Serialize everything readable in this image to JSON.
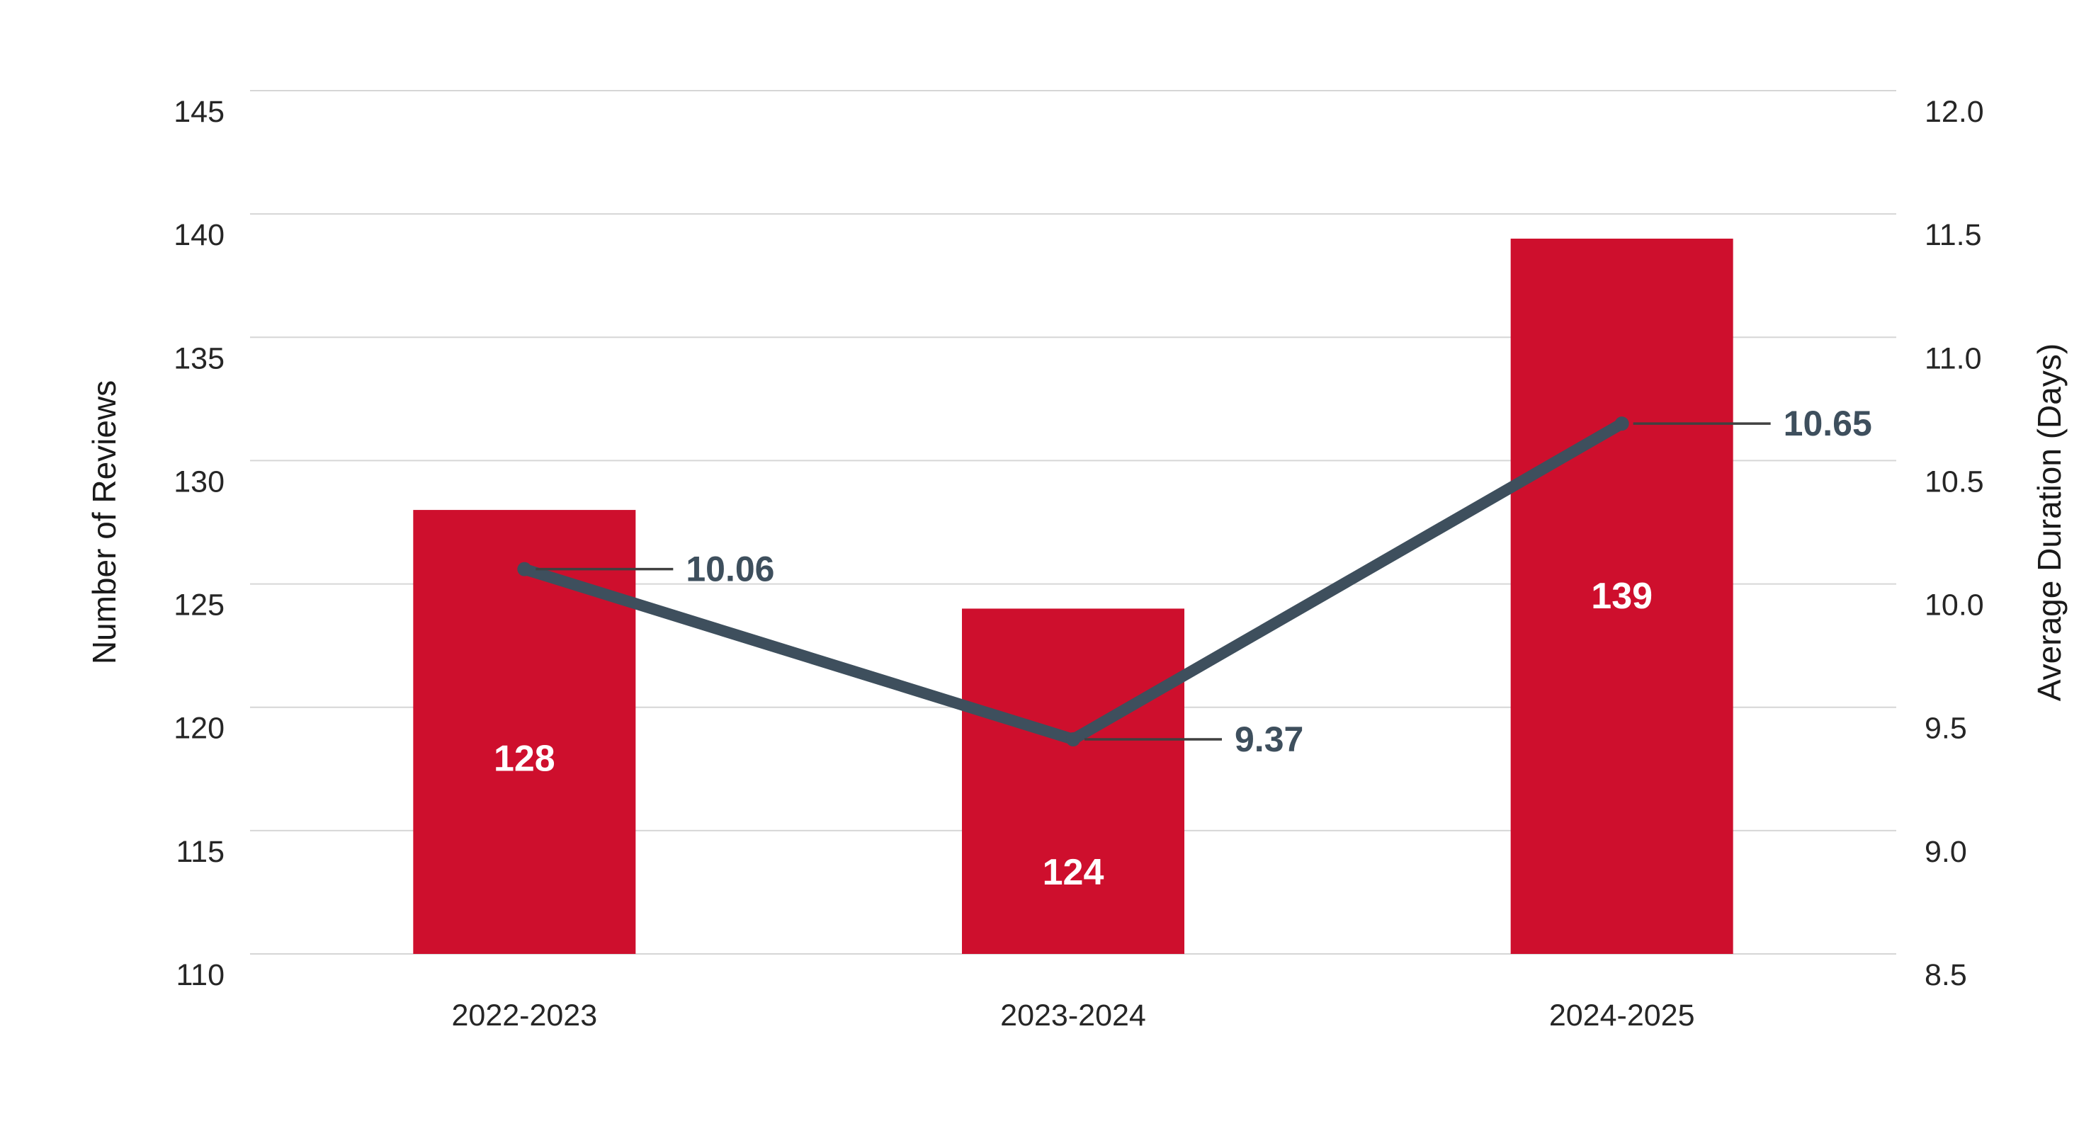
{
  "chart_data": {
    "type": "combo",
    "categories": [
      "2022-2023",
      "2023-2024",
      "2024-2025"
    ],
    "series": [
      {
        "name": "Number of Reviews",
        "type": "bar",
        "axis": "left",
        "values": [
          128,
          124,
          139
        ],
        "labels": [
          "128",
          "124",
          "139"
        ],
        "color": "#ce0f2d",
        "label_color": "#ffffff"
      },
      {
        "name": "Average Duration (Days)",
        "type": "line",
        "axis": "right",
        "values": [
          10.06,
          9.37,
          10.65
        ],
        "labels": [
          "10.06",
          "9.37",
          "10.65"
        ],
        "color": "#3e4f5d",
        "label_color": "#3e4f5d"
      }
    ],
    "left_axis": {
      "title": "Number of Reviews",
      "min": 110,
      "max": 145,
      "step": 5,
      "ticks": [
        "145",
        "140",
        "135",
        "130",
        "125",
        "120",
        "115",
        "110"
      ]
    },
    "right_axis": {
      "title": "Average Duration (Days)",
      "min": 8.5,
      "max": 12.0,
      "step": 0.5,
      "ticks": [
        "12.0",
        "11.5",
        "11.0",
        "10.5",
        "10.0",
        "9.5",
        "9.0",
        "8.5"
      ]
    },
    "grid": true,
    "legend": "none",
    "background": "#ffffff",
    "gridline_color": "#d6d6d6",
    "leader_color": "#404040",
    "tick_color": "#262626",
    "axis_title_color": "#1a1a1a"
  }
}
